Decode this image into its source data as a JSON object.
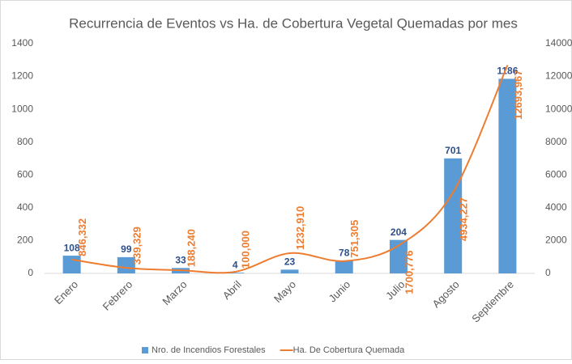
{
  "chart_data": {
    "type": "bar-line",
    "title": "Recurrencia de Eventos vs Ha. de Cobertura Vegetal Quemadas por mes",
    "categories": [
      "Enero",
      "Febrero",
      "Marzo",
      "Abril",
      "Mayo",
      "Junio",
      "Julio",
      "Agosto",
      "Septiembre"
    ],
    "series": [
      {
        "name": "Nro. de Incendios Forestales",
        "color": "#5b9bd5",
        "type": "bar",
        "label_color": "#2f4f8a",
        "values": [
          108,
          99,
          33,
          4,
          23,
          78,
          204,
          701,
          1186
        ]
      },
      {
        "name": "Ha. De Cobertura Quemada",
        "color": "#ed7d31",
        "type": "line",
        "axis": "y2",
        "values": [
          846.332,
          339.329,
          188.24,
          100.0,
          1232.91,
          751.305,
          1700.776,
          4934.227,
          12693.967
        ],
        "value_labels": [
          "846,332",
          "339,329",
          "188,240",
          "100,000",
          "1232,910",
          "751,305",
          "1700,776",
          "4934,227",
          "12693,967"
        ]
      }
    ],
    "ylim": [
      0,
      1400
    ],
    "yticks": [
      0,
      200,
      400,
      600,
      800,
      1000,
      1200,
      1400
    ],
    "y2lim": [
      0,
      14000
    ],
    "y2ticks": [
      0,
      2000,
      4000,
      6000,
      8000,
      10000,
      12000,
      14000
    ],
    "legend": "bottom"
  }
}
